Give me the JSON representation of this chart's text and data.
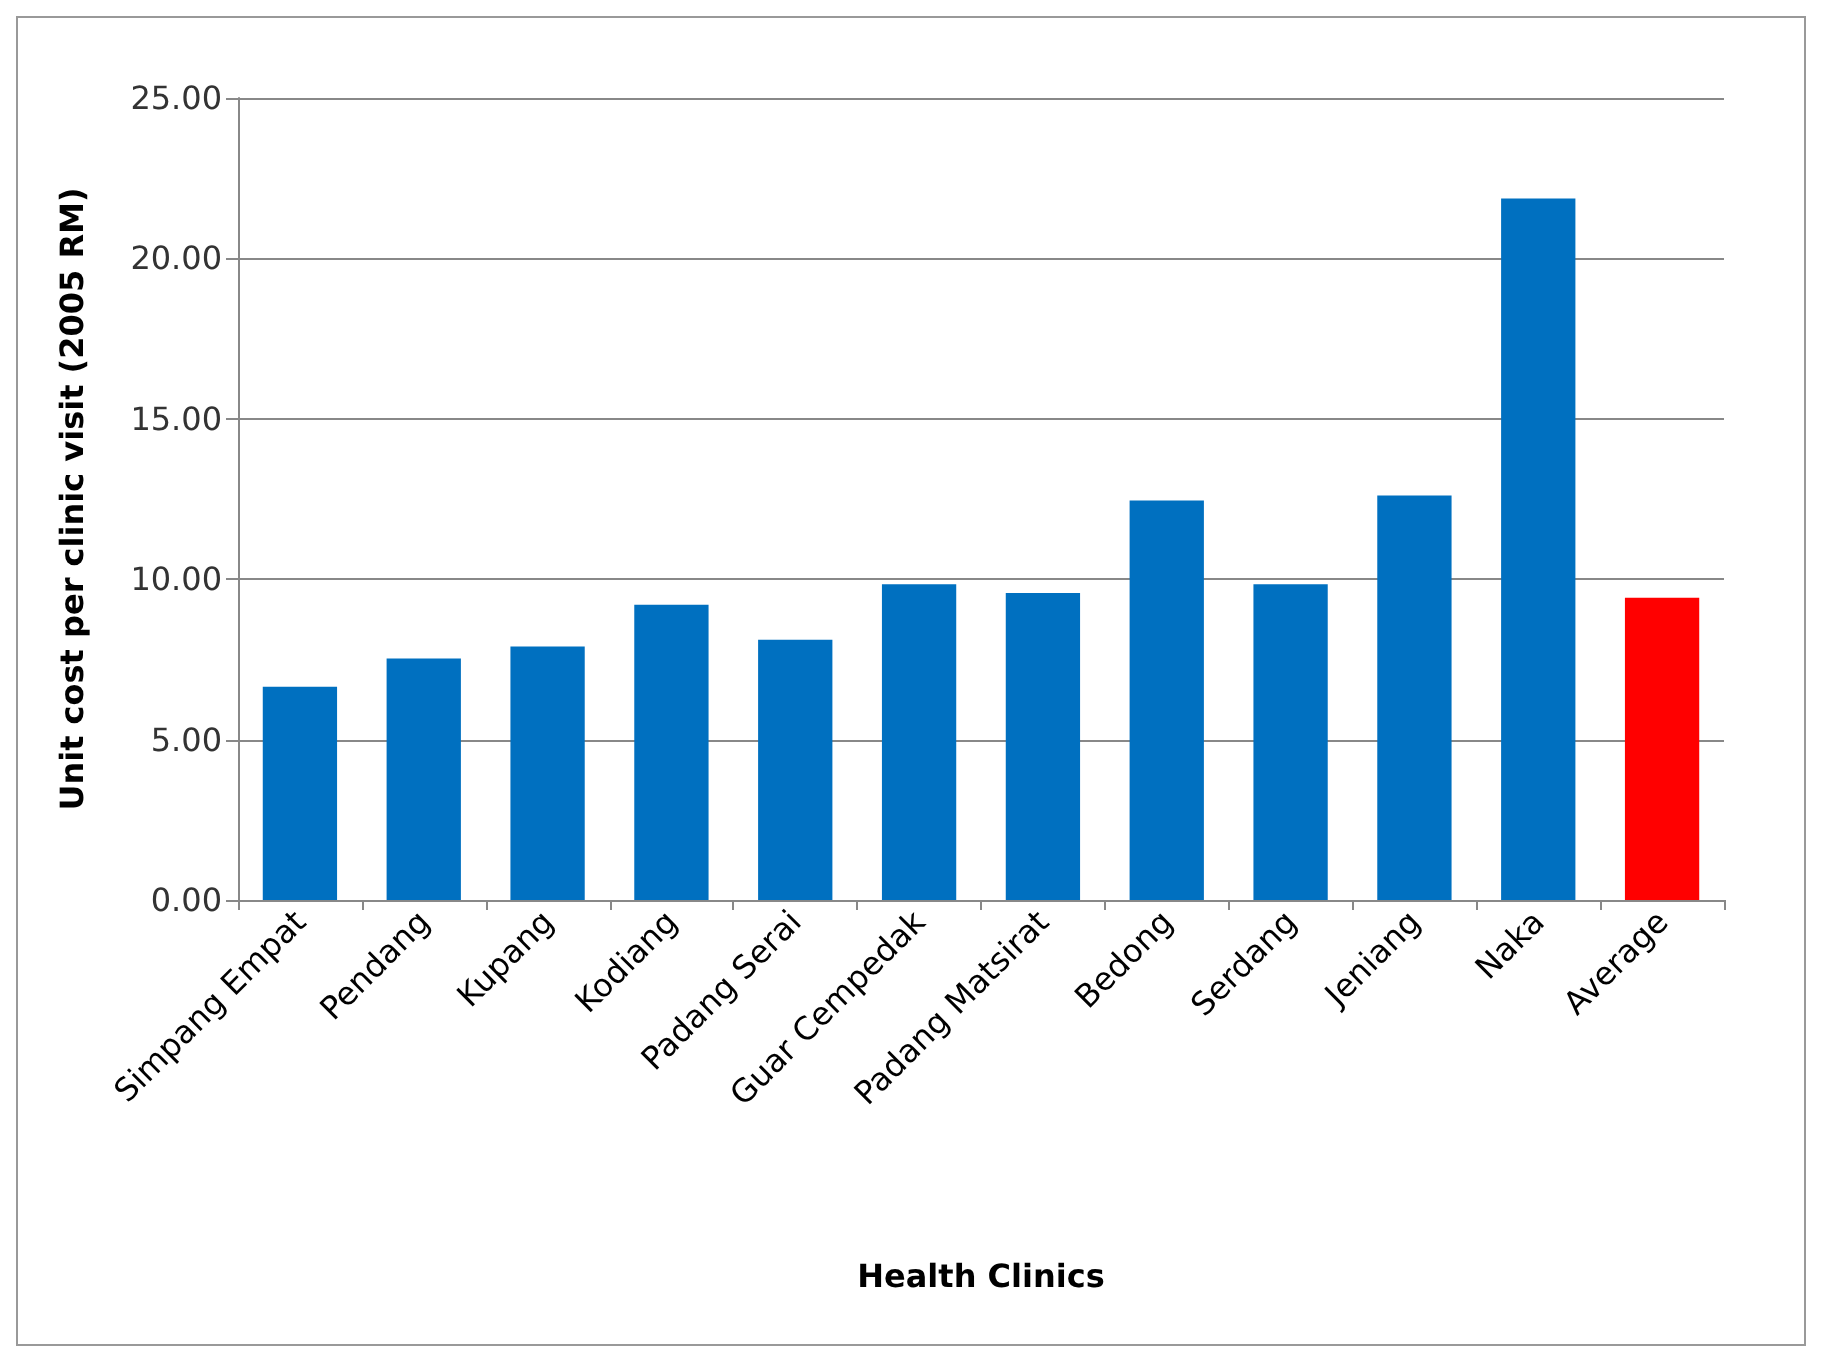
{
  "chart_data": {
    "type": "bar",
    "xlabel": "Health Clinics",
    "ylabel": "Unit cost per clinic visit (2005 RM)",
    "categories": [
      "Simpang Empat",
      "Pendang",
      "Kupang",
      "Kodiang",
      "Padang Serai",
      "Guar Cempedak",
      "Padang Matsirat",
      "Bedong",
      "Serdang",
      "Jeniang",
      "Naka",
      "Average"
    ],
    "values": [
      6.65,
      7.53,
      7.9,
      9.2,
      8.11,
      9.84,
      9.57,
      12.45,
      9.84,
      12.61,
      21.87,
      9.42
    ],
    "colors": [
      "#0070c0",
      "#0070c0",
      "#0070c0",
      "#0070c0",
      "#0070c0",
      "#0070c0",
      "#0070c0",
      "#0070c0",
      "#0070c0",
      "#0070c0",
      "#0070c0",
      "#ff0000"
    ],
    "ylim": [
      0,
      25
    ],
    "yticks": [
      {
        "value": 0,
        "label": "0.00"
      },
      {
        "value": 5,
        "label": "5.00"
      },
      {
        "value": 10,
        "label": "10.00"
      },
      {
        "value": 15,
        "label": "15.00"
      },
      {
        "value": 20,
        "label": "20.00"
      },
      {
        "value": 25,
        "label": "25.00"
      }
    ],
    "grid": "y"
  }
}
